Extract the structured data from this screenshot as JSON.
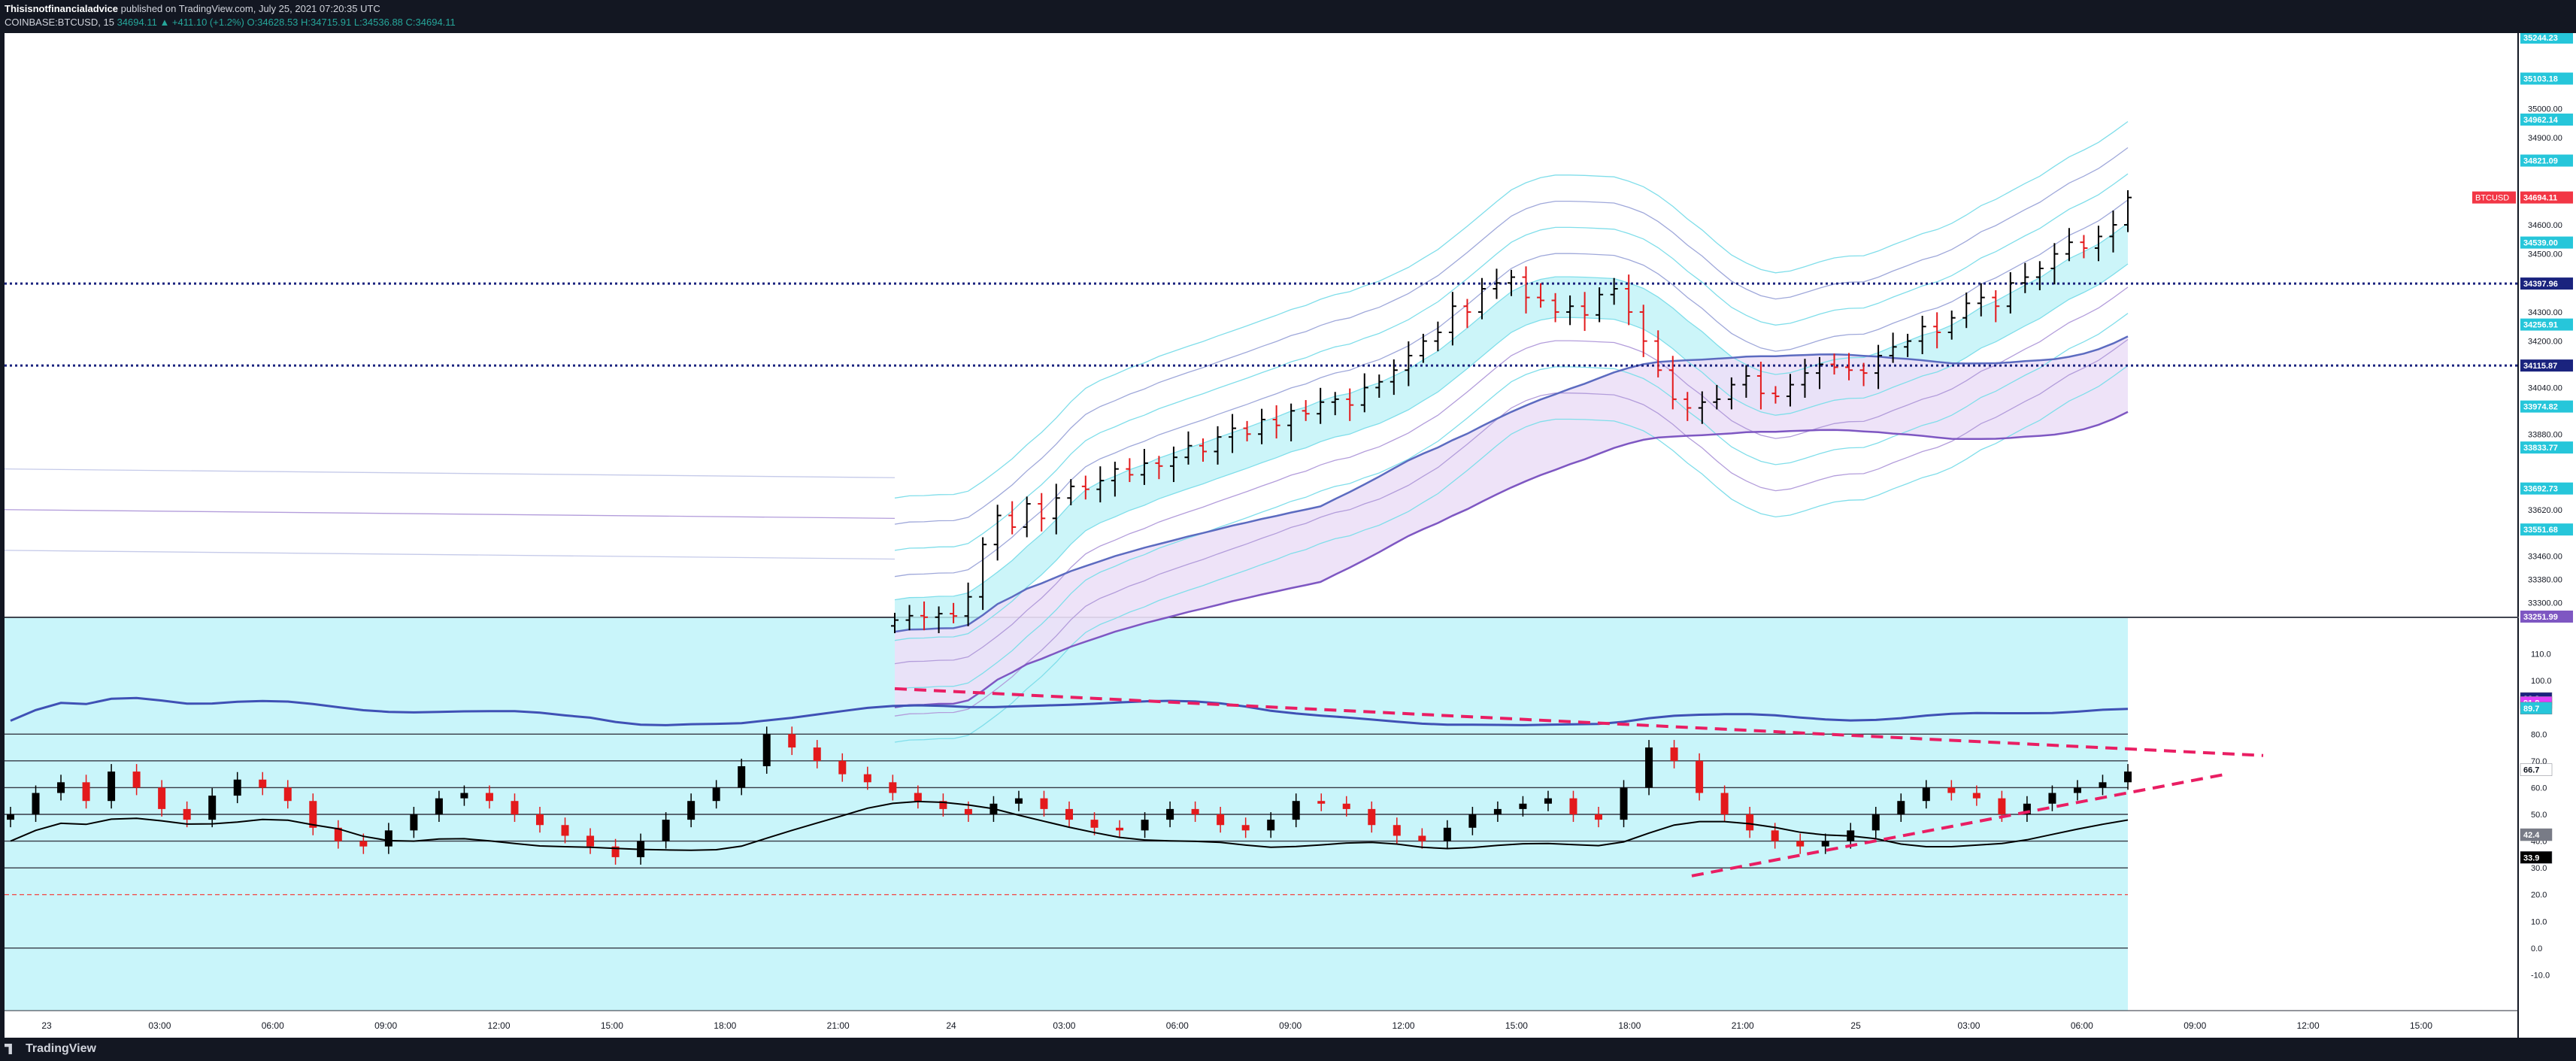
{
  "header": {
    "author": "Thisisnotfinancialadvice",
    "published_text": "published on TradingView.com, July 25, 2021 07:20:35 UTC",
    "symbol": "COINBASE:BTCUSD, 15",
    "last": "34694.11",
    "change": "▲ +411.10 (+1.2%)",
    "ohlc": "O:34628.53 H:34715.91 L:34536.88 C:34694.11"
  },
  "footer": {
    "brand": "TradingView"
  },
  "colors": {
    "background": "#ffffff",
    "panel_bg": "#c9f5fa",
    "bull": "#000000",
    "bear": "#e31a1c",
    "band_fill": "#bff2f7",
    "cloud_fill": "#ece0f7",
    "dotted_level": "#1a237e",
    "trendline": "#e91e63",
    "axis_text": "#131722",
    "chrome": "#131722"
  },
  "chart_data": [
    {
      "type": "candlestick",
      "title": "COINBASE:BTCUSD, 15",
      "x_labels": [
        "23",
        "03:00",
        "06:00",
        "09:00",
        "12:00",
        "15:00",
        "18:00",
        "21:00",
        "24",
        "03:00",
        "06:00",
        "09:00",
        "12:00",
        "15:00",
        "18:00",
        "21:00",
        "25",
        "03:00",
        "06:00",
        "09:00",
        "12:00",
        "15:00"
      ],
      "y_ticks": [
        35000,
        34900,
        34820,
        34600,
        34500,
        34300,
        34200,
        34040,
        33880,
        33620,
        33460,
        33380,
        33300
      ],
      "ylim": [
        33251.99,
        35244.23
      ],
      "grid": false,
      "price_tags": [
        {
          "label": "35244.23",
          "color": "#26c6da"
        },
        {
          "label": "35103.18",
          "color": "#26c6da"
        },
        {
          "label": "34962.14",
          "color": "#26c6da"
        },
        {
          "label": "34821.09",
          "color": "#26c6da"
        },
        {
          "label": "34694.11",
          "color": "#f23645"
        },
        {
          "label": "34539.00",
          "color": "#26c6da"
        },
        {
          "label": "34397.96",
          "color": "#1a237e"
        },
        {
          "label": "34256.91",
          "color": "#26c6da"
        },
        {
          "label": "34115.87",
          "color": "#1a237e"
        },
        {
          "label": "33974.82",
          "color": "#26c6da"
        },
        {
          "label": "33833.77",
          "color": "#26c6da"
        },
        {
          "label": "33692.73",
          "color": "#26c6da"
        },
        {
          "label": "33551.68",
          "color": "#26c6da"
        },
        {
          "label": "33251.99",
          "color": "#7e57c2"
        }
      ],
      "symbol_tag": "BTCUSD",
      "dotted_levels": [
        34397.96,
        34115.87
      ],
      "series": [
        {
          "name": "BTCUSD",
          "close": [
            33240,
            33255,
            33250,
            33262,
            33254,
            33320,
            33500,
            33600,
            33560,
            33640,
            33590,
            33660,
            33700,
            33690,
            33720,
            33760,
            33740,
            33780,
            33770,
            33800,
            33840,
            33820,
            33870,
            33900,
            33880,
            33930,
            33910,
            33960,
            33950,
            33990,
            34000,
            33980,
            34040,
            34060,
            34100,
            34150,
            34200,
            34230,
            34320,
            34300,
            34380,
            34400,
            34420,
            34350,
            34340,
            34300,
            34320,
            34290,
            34360,
            34380,
            34300,
            34200,
            34100,
            34000,
            33970,
            33990,
            34000,
            34050,
            34080,
            34020,
            34010,
            34050,
            34090,
            34120,
            34110,
            34100,
            34090,
            34150,
            34180,
            34200,
            34250,
            34230,
            34280,
            34330,
            34350,
            34320,
            34400,
            34420,
            34450,
            34500,
            34540,
            34520,
            34560,
            34600,
            34694
          ]
        }
      ]
    },
    {
      "type": "line",
      "title": "",
      "y_ticks": [
        110,
        100,
        90,
        80,
        70,
        60,
        50,
        40,
        30,
        20,
        10,
        0,
        -10
      ],
      "ylim": [
        -20,
        120
      ],
      "tags": [
        {
          "label": "93.3",
          "color": "#1a237e"
        },
        {
          "label": "91.8",
          "color": "#e040fb"
        },
        {
          "label": "89.7",
          "color": "#26c6da"
        },
        {
          "label": "66.7",
          "color": "#ffffff"
        },
        {
          "label": "42.4",
          "color": "#787b86"
        },
        {
          "label": "33.9",
          "color": "#000000"
        }
      ],
      "series": [
        {
          "name": "",
          "values": [
            50,
            58,
            62,
            55,
            66,
            60,
            52,
            48,
            57,
            63,
            60,
            55,
            45,
            40,
            38,
            44,
            50,
            56,
            58,
            55,
            50,
            46,
            42,
            38,
            34,
            40,
            48,
            55,
            60,
            68,
            80,
            75,
            70,
            65,
            62,
            58,
            55,
            52,
            50,
            54,
            56,
            52,
            48,
            45,
            44,
            48,
            52,
            50,
            46,
            44,
            48,
            55,
            54,
            52,
            46,
            42,
            40,
            45,
            50,
            52,
            54,
            56,
            50,
            48,
            60,
            75,
            70,
            58,
            50,
            44,
            40,
            38,
            40,
            44,
            50,
            55,
            60,
            58,
            56,
            50,
            54,
            58,
            60,
            62,
            66
          ]
        }
      ]
    }
  ]
}
